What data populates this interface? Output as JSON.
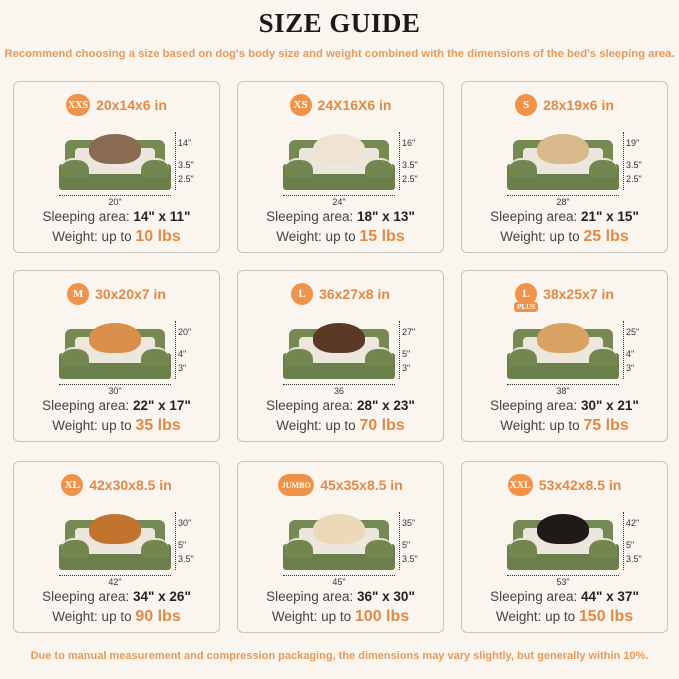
{
  "title": "SIZE GUIDE",
  "subtitle": "Recommend choosing a size based on dog's body size and weight combined with the dimensions of the bed's sleeping area.",
  "footer": "Due to manual measurement and compression packaging, the dimensions may vary slightly, but generally within 10%.",
  "colors": {
    "accent": "#f0934a",
    "bed_green": "#6b7f4a",
    "background": "#fbf5f0"
  },
  "labels": {
    "sleeping_area": "Sleeping area:",
    "weight": "Weight: up to"
  },
  "sizes": [
    {
      "badge": "XXS",
      "dims": "20x14x6 in",
      "width": "20\"",
      "depth": "14\"",
      "h_top": "3.5\"",
      "h_base": "2.5\"",
      "sleeping_area": "14\" x 11\"",
      "weight": "10 lbs",
      "pet_color": "#8a6a50"
    },
    {
      "badge": "XS",
      "dims": "24X16X6 in",
      "width": "24\"",
      "depth": "16\"",
      "h_top": "3.5\"",
      "h_base": "2.5\"",
      "sleeping_area": "18\" x 13\"",
      "weight": "15 lbs",
      "pet_color": "#efe3d3"
    },
    {
      "badge": "S",
      "dims": "28x19x6 in",
      "width": "28\"",
      "depth": "19\"",
      "h_top": "3.5\"",
      "h_base": "2.5\"",
      "sleeping_area": "21\" x 15\"",
      "weight": "25 lbs",
      "pet_color": "#d9b98c"
    },
    {
      "badge": "M",
      "dims": "30x20x7 in",
      "width": "30\"",
      "depth": "20\"",
      "h_top": "4\"",
      "h_base": "3\"",
      "sleeping_area": "22\" x 17\"",
      "weight": "35 lbs",
      "pet_color": "#d98e4a"
    },
    {
      "badge": "L",
      "dims": "36x27x8 in",
      "width": "36",
      "depth": "27\"",
      "h_top": "5\"",
      "h_base": "3\"",
      "sleeping_area": "28\" x 23\"",
      "weight": "70 lbs",
      "pet_color": "#5a3a26"
    },
    {
      "badge": "L",
      "badge_extra": "PLUS",
      "dims": "38x25x7 in",
      "width": "38\"",
      "depth": "25\"",
      "h_top": "4\"",
      "h_base": "3\"",
      "sleeping_area": "30\" x 21\"",
      "weight": "75 lbs",
      "pet_color": "#d9a262"
    },
    {
      "badge": "XL",
      "dims": "42x30x8.5 in",
      "width": "42\"",
      "depth": "30\"",
      "h_top": "5\"",
      "h_base": "3.5\"",
      "sleeping_area": "34\" x 26\"",
      "weight": "90 lbs",
      "pet_color": "#c2742e"
    },
    {
      "badge": "JUMBO",
      "dims": "45x35x8.5 in",
      "width": "45\"",
      "depth": "35\"",
      "h_top": "5\"",
      "h_base": "3.5\"",
      "sleeping_area": "36\" x 30\"",
      "weight": "100 lbs",
      "pet_color": "#ecd9b8"
    },
    {
      "badge": "XXL",
      "dims": "53x42x8.5 in",
      "width": "53\"",
      "depth": "42\"",
      "h_top": "5\"",
      "h_base": "3.5\"",
      "sleeping_area": "44\" x 37\"",
      "weight": "150 lbs",
      "pet_color": "#1e1a18"
    }
  ]
}
